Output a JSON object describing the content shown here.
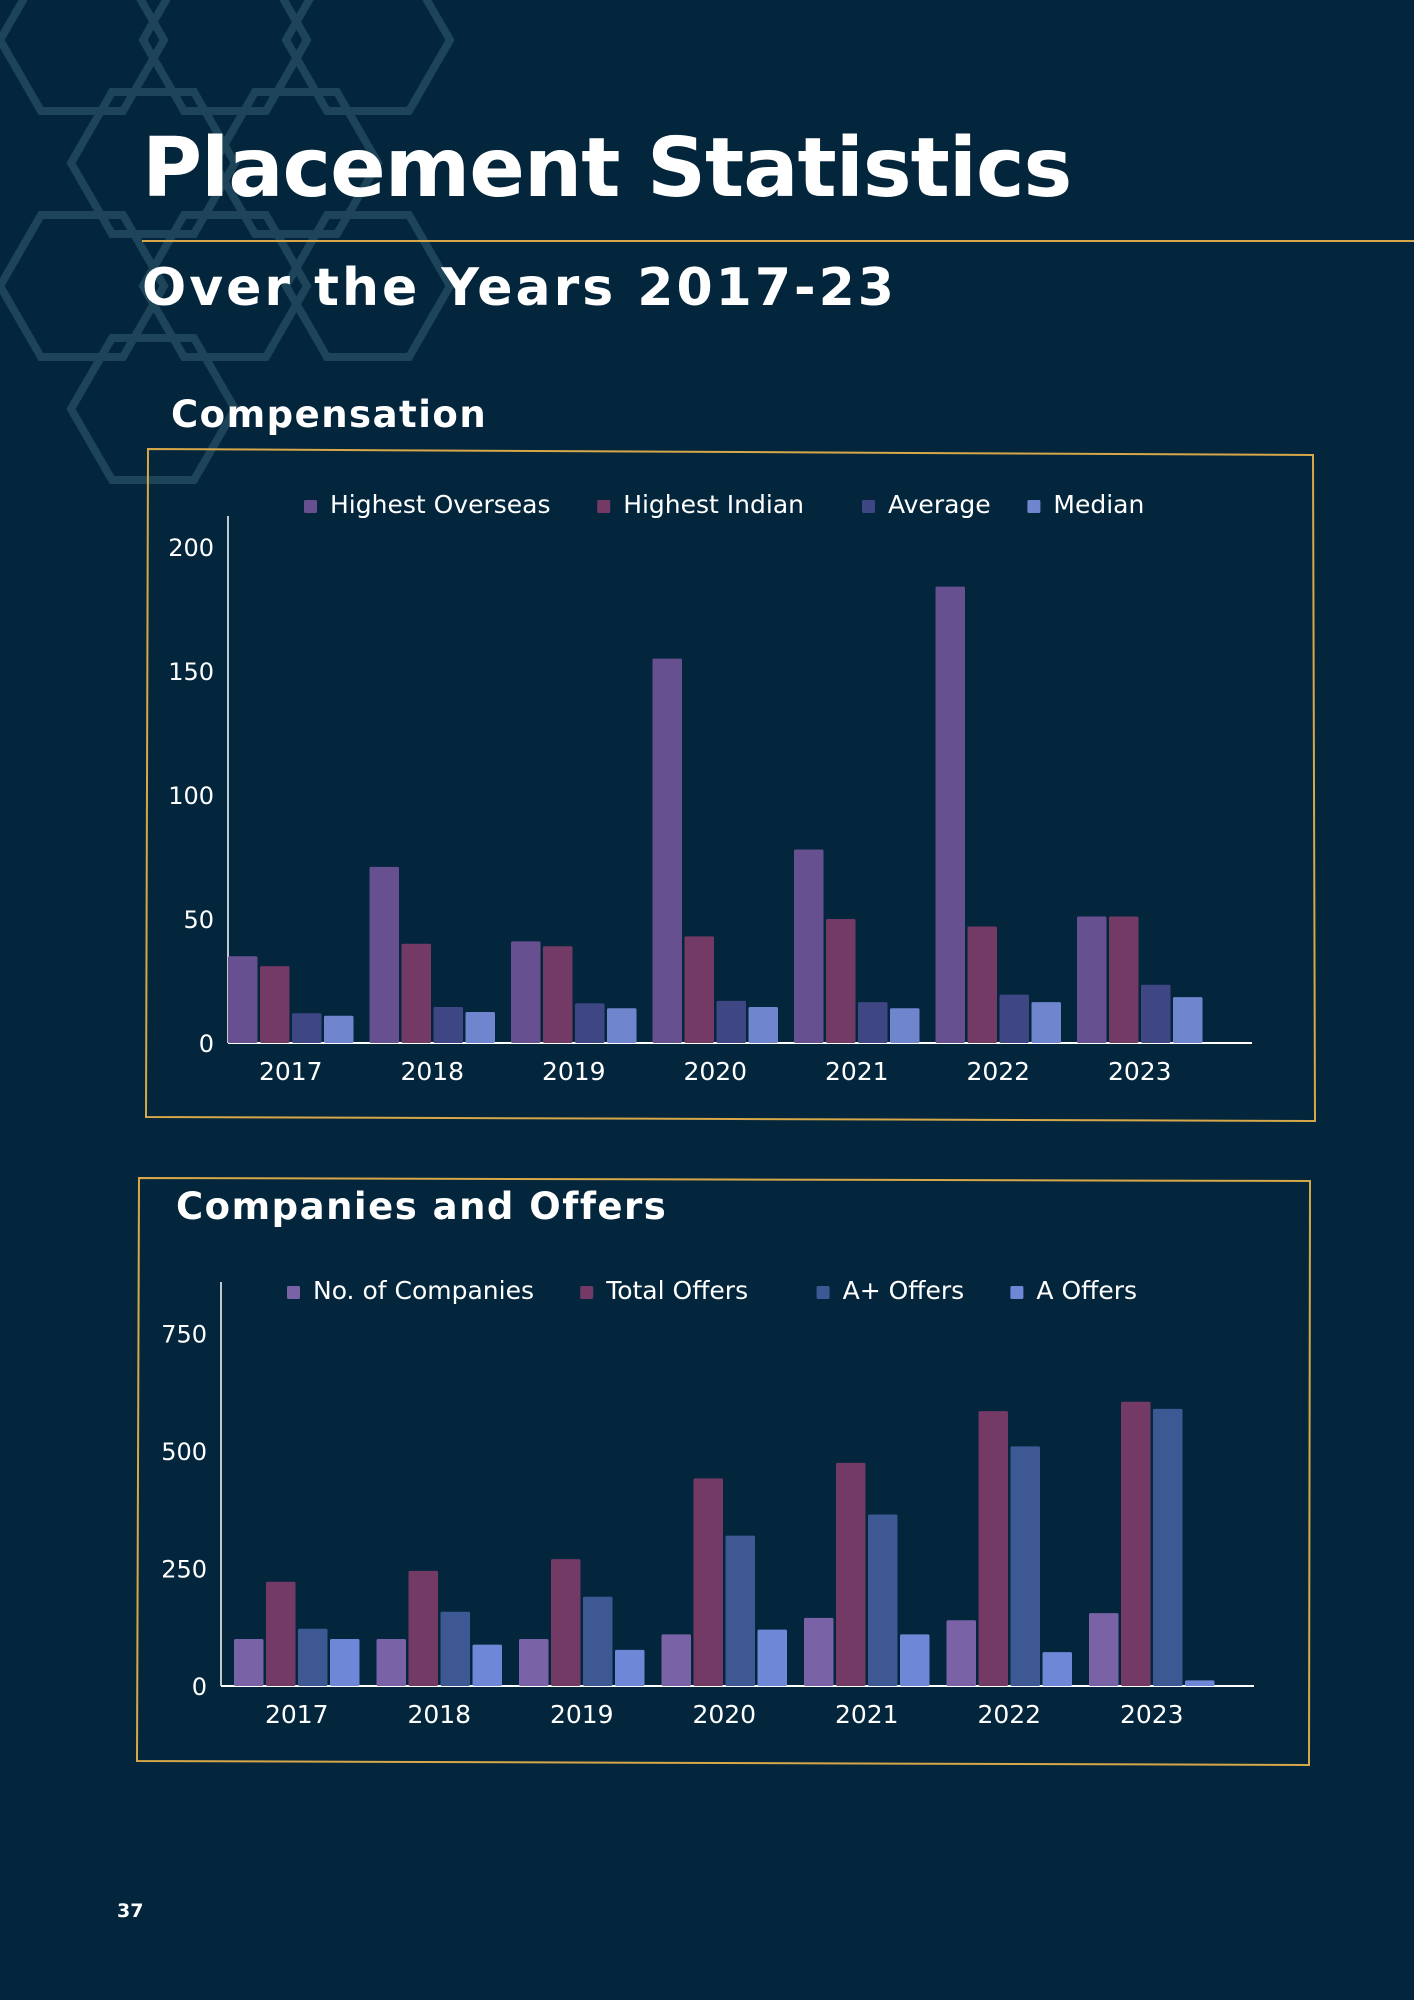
{
  "page": {
    "title": "Placement Statistics",
    "subtitle": "Over the Years 2017-23",
    "page_number": "37"
  },
  "colors": {
    "background": "#03263c",
    "accent_gold": "#d6a84a",
    "hexagon_outline": "#1d4459",
    "series_1": "#67508f",
    "series_2": "#733a66",
    "series_3": "#3f4684",
    "series_4": "#6f86cf",
    "series_3_alt": "#3d5892",
    "series_1_alt": "#7a62a6",
    "series_4_alt": "#6e87d6"
  },
  "decoration": {
    "background_pattern": "hexagon-outline-icon"
  },
  "chart_data": [
    {
      "type": "bar",
      "title": "Compensation",
      "xlabel": "",
      "ylabel": "",
      "categories": [
        "2017",
        "2018",
        "2019",
        "2020",
        "2021",
        "2022",
        "2023"
      ],
      "series": [
        {
          "name": "Highest Overseas",
          "values": [
            35,
            71,
            41,
            155,
            78,
            184,
            51
          ],
          "color": "#67508f"
        },
        {
          "name": "Highest Indian",
          "values": [
            31,
            40,
            39,
            43,
            50,
            47,
            51
          ],
          "color": "#733a66"
        },
        {
          "name": "Average",
          "values": [
            12,
            14.5,
            16,
            17,
            16.5,
            19.5,
            23.5
          ],
          "color": "#3f4684"
        },
        {
          "name": "Median",
          "values": [
            11,
            12.5,
            14,
            14.5,
            14,
            16.5,
            18.5
          ],
          "color": "#6f86cf"
        }
      ],
      "ylim": [
        0,
        210
      ],
      "yticks": [
        "0",
        "50",
        "100",
        "150",
        "200"
      ],
      "grid": false,
      "legend_position": "top"
    },
    {
      "type": "bar",
      "title": "Companies and Offers",
      "xlabel": "",
      "ylabel": "",
      "categories": [
        "2017",
        "2018",
        "2019",
        "2020",
        "2021",
        "2022",
        "2023"
      ],
      "series": [
        {
          "name": "No. of Companies",
          "values": [
            100,
            100,
            100,
            110,
            145,
            140,
            155
          ],
          "color": "#7a62a6"
        },
        {
          "name": "Total Offers",
          "values": [
            222,
            245,
            270,
            442,
            475,
            585,
            605
          ],
          "color": "#733a66"
        },
        {
          "name": "A+ Offers",
          "values": [
            122,
            158,
            190,
            320,
            365,
            510,
            590
          ],
          "color": "#3d5892"
        },
        {
          "name": "A Offers",
          "values": [
            100,
            88,
            77,
            120,
            110,
            72,
            12
          ],
          "color": "#6e87d6"
        }
      ],
      "ylim": [
        0,
        860
      ],
      "yticks": [
        "0",
        "250",
        "500",
        "750"
      ],
      "grid": false,
      "legend_position": "top"
    }
  ]
}
